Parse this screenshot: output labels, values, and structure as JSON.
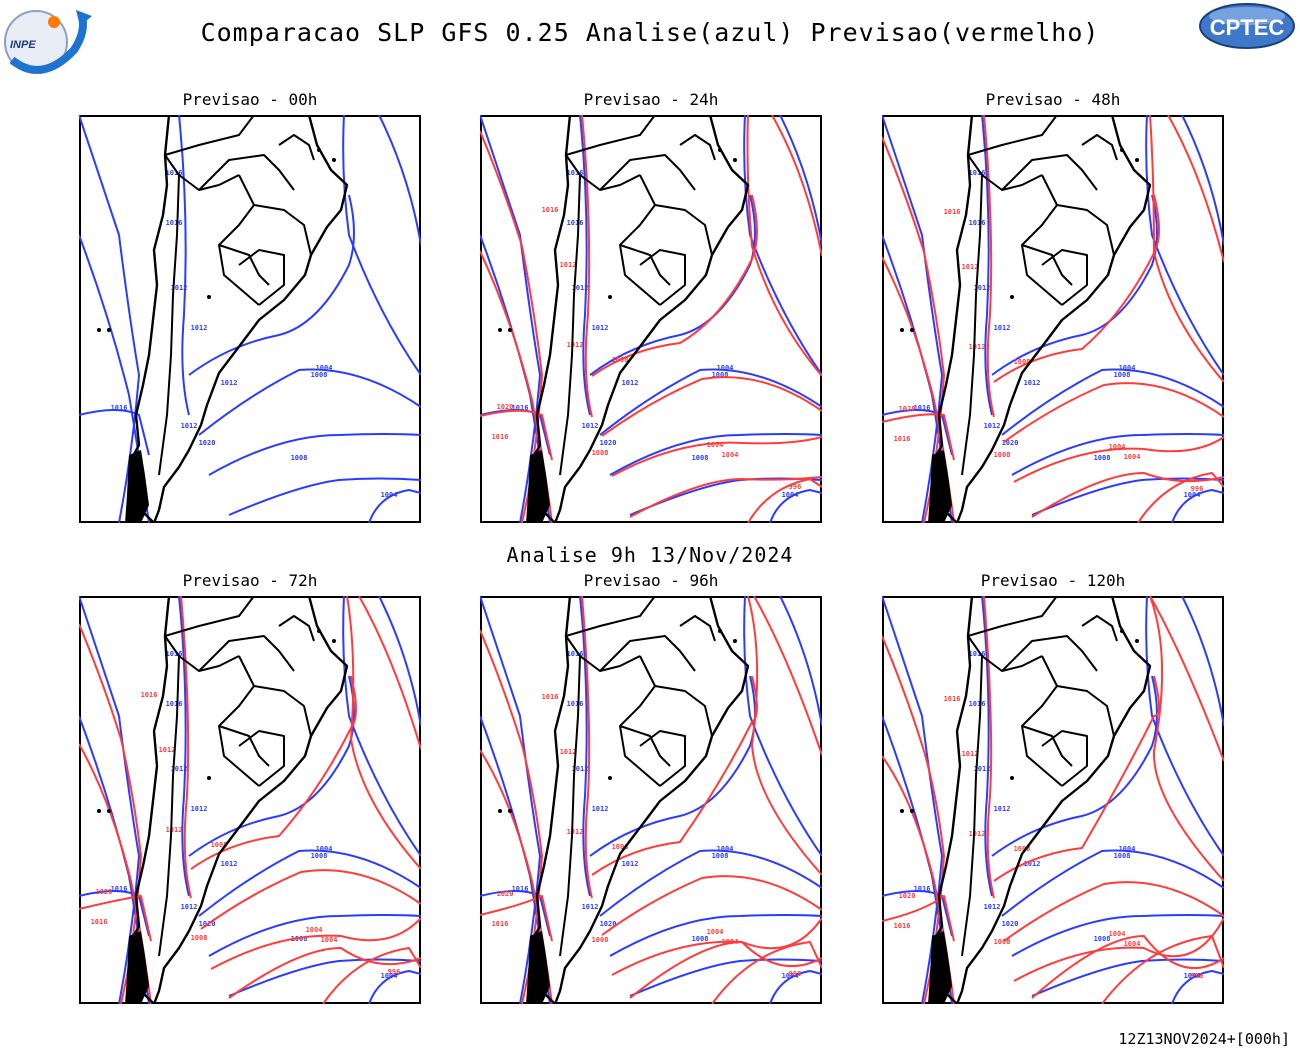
{
  "header": {
    "title": "Comparacao SLP GFS 0.25 Analise(azul) Previsao(vermelho)",
    "analysis_label": "Analise 9h 13/Nov/2024",
    "footer": "12Z13NOV2024+[000h]"
  },
  "logos": {
    "left": "INPE",
    "right": "CPTEC"
  },
  "colors": {
    "analysis": "#2a3cff",
    "forecast": "#ff3b3b",
    "land": "#000000"
  },
  "panels": [
    {
      "title": "Previsao - 00h",
      "has_forecast": false
    },
    {
      "title": "Previsao - 24h",
      "has_forecast": true
    },
    {
      "title": "Previsao - 48h",
      "has_forecast": true
    },
    {
      "title": "Previsao - 72h",
      "has_forecast": true
    },
    {
      "title": "Previsao - 96h",
      "has_forecast": true
    },
    {
      "title": "Previsao - 120h",
      "has_forecast": true
    }
  ],
  "isobar_labels": {
    "analysis": [
      "1016",
      "1016",
      "1012",
      "1012",
      "1012",
      "1008",
      "1004",
      "1020",
      "1016",
      "1012",
      "1008",
      "1004",
      "996"
    ],
    "forecast": [
      "1016",
      "1012",
      "1012",
      "1008",
      "1004",
      "1020",
      "1016",
      "1008",
      "1004",
      "996"
    ]
  }
}
